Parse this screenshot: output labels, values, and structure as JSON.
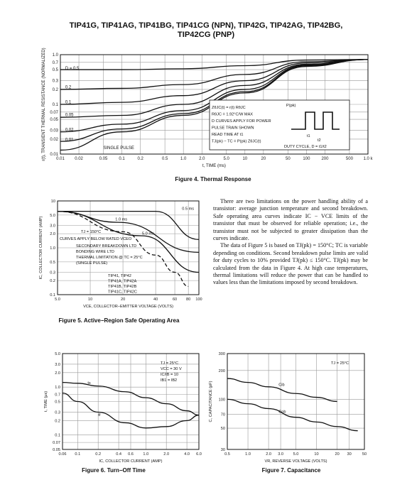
{
  "header": {
    "title_line1": "TIP41G, TIP41AG, TIP41BG, TIP41CG (NPN), TIP42G, TIP42AG, TIP42BG,",
    "title_line2": "TIP42CG (PNP)"
  },
  "body_text": {
    "para1": "There are two limitations on the power handling ability of a transistor: average junction temperature and second breakdown. Safe operating area curves indicate IC − VCE limits of the transistor that must be observed for reliable operation; i.e., the transistor must not be subjected to greater dissipation than the curves indicate.",
    "para2": "The data of Figure 5 is based on TJ(pk) = 150°C; TC is variable depending on conditions. Second breakdown pulse limits are valid for duty cycles to 10% provided TJ(pk) ≤ 150°C. TJ(pk) may be calculated from the data in Figure 4. At high case temperatures, thermal limitations will reduce the power that can be handled to values less than the limitations imposed by second breakdown."
  },
  "chart_data": [
    {
      "type": "line",
      "title": "Figure 4. Thermal Response",
      "xlabel": "t, TIME (ms)",
      "ylabel": "r(t), TRANSIENT THERMAL RESISTANCE (NORMALIZED)",
      "xscale": "log",
      "yscale": "log",
      "xlim": [
        0.01,
        1000
      ],
      "ylim": [
        0.01,
        1.0
      ],
      "xticks": [
        "0.01",
        "0.02",
        "0.05",
        "0.1",
        "0.2",
        "0.5",
        "1.0",
        "2.0",
        "5.0",
        "10",
        "20",
        "50",
        "100",
        "200",
        "500",
        "1.0 k"
      ],
      "yticks": [
        "0.01",
        "0.02",
        "0.03",
        "0.05",
        "0.07",
        "0.1",
        "0.2",
        "0.3",
        "0.5",
        "0.7",
        "1.0"
      ],
      "series": [
        {
          "name": "D = 0.5",
          "x": [
            0.01,
            0.1,
            1,
            10,
            100,
            1000
          ],
          "y": [
            0.5,
            0.5,
            0.52,
            0.6,
            0.78,
            0.8
          ]
        },
        {
          "name": "0.2",
          "x": [
            0.01,
            0.1,
            1,
            10,
            100,
            1000
          ],
          "y": [
            0.2,
            0.21,
            0.25,
            0.4,
            0.72,
            0.8
          ]
        },
        {
          "name": "0.1",
          "x": [
            0.01,
            0.1,
            1,
            10,
            100,
            1000
          ],
          "y": [
            0.1,
            0.11,
            0.15,
            0.3,
            0.68,
            0.8
          ]
        },
        {
          "name": "0.05",
          "x": [
            0.01,
            0.1,
            1,
            10,
            100,
            1000
          ],
          "y": [
            0.055,
            0.06,
            0.1,
            0.24,
            0.64,
            0.8
          ]
        },
        {
          "name": "0.02",
          "x": [
            0.01,
            0.1,
            1,
            10,
            100,
            1000
          ],
          "y": [
            0.028,
            0.04,
            0.075,
            0.2,
            0.62,
            0.8
          ]
        },
        {
          "name": "0.01",
          "x": [
            0.01,
            0.1,
            1,
            10,
            100,
            1000
          ],
          "y": [
            0.018,
            0.032,
            0.065,
            0.18,
            0.6,
            0.8
          ]
        },
        {
          "name": "SINGLE PULSE",
          "x": [
            0.01,
            0.1,
            1,
            10,
            100,
            1000
          ],
          "y": [
            0.012,
            0.028,
            0.06,
            0.17,
            0.58,
            0.8
          ]
        }
      ],
      "annotations": [
        "ZθJC(t) = r(t) RθJC",
        "RθJC = 1.92°C/W MAX",
        "D CURVES APPLY FOR POWER",
        "PULSE TRAIN SHOWN",
        "READ TIME AT t1",
        "TJ(pk) − TC = P(pk) ZθJC(t)",
        "P(pk)",
        "t1",
        "t2",
        "DUTY CYCLE, D = t1/t2"
      ]
    },
    {
      "type": "line",
      "title": "Figure 5. Active−Region Safe Operating Area",
      "xlabel": "VCE, COLLECTOR−EMITTER VOLTAGE (VOLTS)",
      "ylabel": "IC, COLLECTOR CURRENT (AMP)",
      "xscale": "log",
      "yscale": "log",
      "xlim": [
        5,
        100
      ],
      "ylim": [
        0.1,
        10
      ],
      "xticks": [
        "5.0",
        "10",
        "20",
        "40",
        "60",
        "80",
        "100"
      ],
      "yticks": [
        "0.1",
        "0.2",
        "0.3",
        "0.5",
        "1.0",
        "2.0",
        "3.0",
        "5.0",
        "10"
      ],
      "series": [
        {
          "name": "0.5 ms",
          "x": [
            5,
            40,
            100
          ],
          "y": [
            6,
            6,
            1.5
          ]
        },
        {
          "name": "1.0 ms",
          "x": [
            5,
            18,
            100
          ],
          "y": [
            6,
            3.5,
            0.8
          ]
        },
        {
          "name": "5.0 ms",
          "x": [
            5,
            30,
            100
          ],
          "y": [
            6,
            1.8,
            0.3
          ]
        },
        {
          "name": "DC TC = 25°C",
          "x": [
            5,
            20,
            40,
            60,
            80
          ],
          "y": [
            6,
            2.2,
            0.7,
            0.3,
            0.15
          ]
        }
      ],
      "annotations": [
        "TJ = 150°C",
        "CURVES APPLY BELOW RATED VCEO",
        "SECONDARY BREAKDOWN LTD",
        "BONDING WIRE LTD",
        "THERMAL LIMITATION @ TC = 25°C",
        "(SINGLE PULSE)",
        "TIP41, TIP42",
        "TIP41A, TIP42A",
        "TIP41B, TIP42B",
        "TIP41C, TIP42C"
      ]
    },
    {
      "type": "line",
      "title": "Figure 6. Turn−Off Time",
      "xlabel": "IC, COLLECTOR CURRENT (AMP)",
      "ylabel": "t, TIME (μs)",
      "xscale": "log",
      "yscale": "log",
      "xlim": [
        0.06,
        6.0
      ],
      "ylim": [
        0.05,
        5.0
      ],
      "xticks": [
        "0.06",
        "0.1",
        "0.2",
        "0.4",
        "0.6",
        "1.0",
        "2.0",
        "4.0",
        "6.0"
      ],
      "yticks": [
        "0.05",
        "0.07",
        "0.1",
        "0.2",
        "0.3",
        "0.5",
        "0.7",
        "1.0",
        "2.0",
        "3.0",
        "5.0"
      ],
      "series": [
        {
          "name": "ts",
          "x": [
            0.06,
            0.1,
            0.2,
            0.5,
            1,
            2,
            4,
            6
          ],
          "y": [
            1.25,
            1.2,
            1.05,
            0.8,
            0.6,
            0.45,
            0.32,
            0.26
          ]
        },
        {
          "name": "tf",
          "x": [
            0.06,
            0.1,
            0.2,
            0.5,
            1,
            2,
            4,
            6
          ],
          "y": [
            0.75,
            0.5,
            0.3,
            0.18,
            0.14,
            0.15,
            0.2,
            0.26
          ]
        }
      ],
      "annotations": [
        "TJ = 25°C",
        "VCC = 30 V",
        "IC/IB = 10",
        "IB1 = IB2"
      ]
    },
    {
      "type": "line",
      "title": "Figure 7. Capacitance",
      "xlabel": "VR, REVERSE VOLTAGE (VOLTS)",
      "ylabel": "C, CAPACITANCE (pF)",
      "xscale": "log",
      "yscale": "log",
      "xlim": [
        0.5,
        50
      ],
      "ylim": [
        30,
        300
      ],
      "xticks": [
        "0.5",
        "1.0",
        "2.0",
        "3.0",
        "5.0",
        "10",
        "20",
        "30",
        "50"
      ],
      "yticks": [
        "30",
        "50",
        "70",
        "100",
        "200",
        "300"
      ],
      "series": [
        {
          "name": "Cib",
          "x": [
            0.5,
            1,
            2,
            5,
            10,
            20
          ],
          "y": [
            165,
            150,
            135,
            115,
            105,
            95
          ]
        },
        {
          "name": "Cob",
          "x": [
            0.5,
            1,
            2,
            5,
            10,
            20,
            40
          ],
          "y": [
            100,
            90,
            80,
            65,
            58,
            52,
            47
          ]
        }
      ],
      "annotations": [
        "TJ = 25°C"
      ]
    }
  ]
}
